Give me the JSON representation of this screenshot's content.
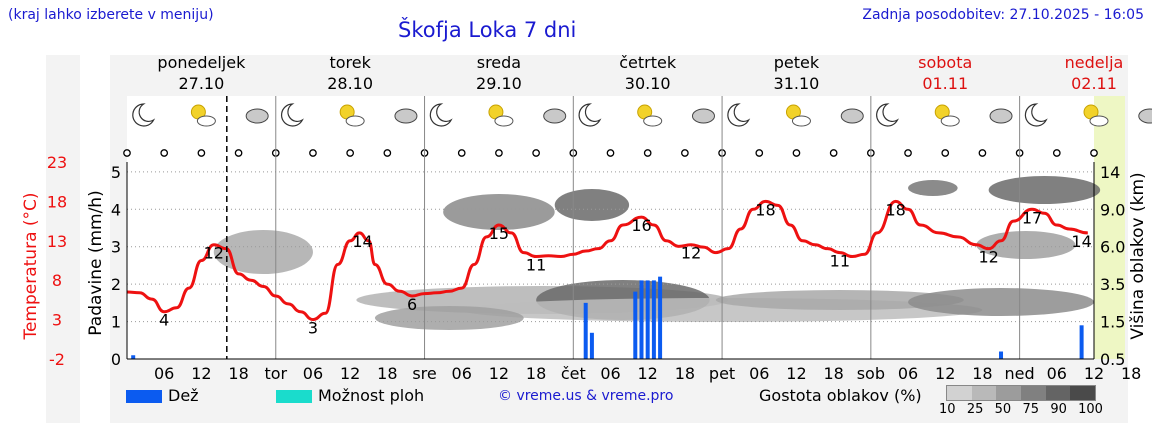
{
  "header": {
    "hint": "(kraj lahko izberete v meniju)",
    "title": "Škofja Loka 7 dni",
    "updated": "Zadnja posodobitev: 27.10.2025 - 16:05"
  },
  "days": [
    {
      "name": "ponedeljek",
      "date": "27.10",
      "weekend": false
    },
    {
      "name": "torek",
      "date": "28.10",
      "weekend": false
    },
    {
      "name": "sreda",
      "date": "29.10",
      "weekend": false
    },
    {
      "name": "četrtek",
      "date": "30.10",
      "weekend": false
    },
    {
      "name": "petek",
      "date": "31.10",
      "weekend": false
    },
    {
      "name": "sobota",
      "date": "01.11",
      "weekend": true
    },
    {
      "name": "nedelja",
      "date": "02.11",
      "weekend": true
    }
  ],
  "axes": {
    "temp_title": "Temperatura (°C)",
    "rain_title": "Padavine (mm/h)",
    "cloud_title": "Višina oblakov (km)",
    "temp_ticks": [
      "23",
      "18",
      "13",
      "8",
      "3",
      "-2"
    ],
    "rain_ticks": [
      "5",
      "4",
      "3",
      "2",
      "1",
      "0"
    ],
    "cloud_ticks": [
      "14",
      "9.0",
      "6.0",
      "3.5",
      "1.5",
      "0.5"
    ],
    "time_ticks": [
      "06",
      "12",
      "18",
      "tor",
      "06",
      "12",
      "18",
      "sre",
      "06",
      "12",
      "18",
      "čet",
      "06",
      "12",
      "18",
      "pet",
      "06",
      "12",
      "18",
      "sob",
      "06",
      "12",
      "18",
      "ned",
      "06",
      "12",
      "18"
    ]
  },
  "chart_data": {
    "type": "line",
    "title": "Škofja Loka 7 dni",
    "xlabel": "",
    "ylabel": "Temperatura (°C)",
    "ylim": [
      -2,
      23
    ],
    "rain_ylim": [
      0,
      5
    ],
    "x_units": "hours from Monday 27.10 00:00",
    "series": [
      {
        "name": "Temperatura",
        "color": "#ee1111",
        "points": [
          [
            0,
            6.5
          ],
          [
            2,
            6.4
          ],
          [
            4,
            5.6
          ],
          [
            6,
            4
          ],
          [
            8,
            4.5
          ],
          [
            10,
            7
          ],
          [
            12,
            10.5
          ],
          [
            14,
            12.5
          ],
          [
            16,
            12
          ],
          [
            18,
            8.8
          ],
          [
            20,
            8
          ],
          [
            22,
            7.2
          ],
          [
            24,
            6
          ],
          [
            26,
            5
          ],
          [
            28,
            4
          ],
          [
            30,
            3
          ],
          [
            32,
            3.8
          ],
          [
            34,
            10
          ],
          [
            36,
            13
          ],
          [
            37.5,
            14
          ],
          [
            39,
            13
          ],
          [
            40,
            10
          ],
          [
            42,
            7.5
          ],
          [
            44,
            6.6
          ],
          [
            46,
            6
          ],
          [
            48,
            6.3
          ],
          [
            50,
            6.4
          ],
          [
            52,
            6.6
          ],
          [
            54,
            7
          ],
          [
            56,
            10
          ],
          [
            58,
            13.5
          ],
          [
            60,
            15
          ],
          [
            62,
            14
          ],
          [
            64,
            11.5
          ],
          [
            66,
            11
          ],
          [
            68,
            11.1
          ],
          [
            70,
            11
          ],
          [
            72,
            11.3
          ],
          [
            74,
            11.7
          ],
          [
            76,
            12
          ],
          [
            78,
            13
          ],
          [
            80,
            15
          ],
          [
            83,
            16
          ],
          [
            85,
            15
          ],
          [
            87,
            13
          ],
          [
            89,
            12.3
          ],
          [
            91,
            12.5
          ],
          [
            93,
            12.2
          ],
          [
            95,
            11.5
          ],
          [
            97,
            12
          ],
          [
            99,
            14.5
          ],
          [
            101,
            17
          ],
          [
            103,
            18
          ],
          [
            105,
            17.5
          ],
          [
            107,
            15
          ],
          [
            109,
            13
          ],
          [
            111,
            12.5
          ],
          [
            113,
            12
          ],
          [
            115,
            11.5
          ],
          [
            117,
            11
          ],
          [
            119,
            11.3
          ],
          [
            121,
            14
          ],
          [
            124,
            18
          ],
          [
            126,
            17
          ],
          [
            128,
            15
          ],
          [
            131,
            14
          ],
          [
            134,
            13.5
          ],
          [
            137,
            12.5
          ],
          [
            139,
            12
          ],
          [
            141,
            13
          ],
          [
            143,
            15.5
          ],
          [
            146,
            17
          ],
          [
            148,
            16.5
          ],
          [
            150,
            15
          ],
          [
            152,
            14.5
          ],
          [
            155,
            14
          ]
        ]
      },
      {
        "name": "Dež (mm/h)",
        "color": "#0b5bf0",
        "points": [
          [
            1,
            0.1
          ],
          [
            74,
            1.5
          ],
          [
            75,
            0.7
          ],
          [
            82,
            1.8
          ],
          [
            83,
            2.1
          ],
          [
            84,
            2.1
          ],
          [
            85,
            2.1
          ],
          [
            86,
            2.2
          ],
          [
            141,
            0.2
          ],
          [
            154,
            0.9
          ]
        ]
      }
    ],
    "labels": [
      {
        "x": 6,
        "value": "4"
      },
      {
        "x": 14,
        "value": "12"
      },
      {
        "x": 30,
        "value": "3"
      },
      {
        "x": 38,
        "value": "14"
      },
      {
        "x": 46,
        "value": "6"
      },
      {
        "x": 60,
        "value": "15"
      },
      {
        "x": 66,
        "value": "11"
      },
      {
        "x": 83,
        "value": "16"
      },
      {
        "x": 91,
        "value": "12"
      },
      {
        "x": 103,
        "value": "18"
      },
      {
        "x": 115,
        "value": "11"
      },
      {
        "x": 124,
        "value": "18"
      },
      {
        "x": 139,
        "value": "12"
      },
      {
        "x": 146,
        "value": "17"
      },
      {
        "x": 154,
        "value": "14"
      }
    ],
    "now_hour": 16.1
  },
  "legend": {
    "rain": "Dež",
    "rain_color": "#0b5bf0",
    "shower": "Možnost ploh",
    "shower_color": "#1adccc",
    "density_title": "Gostota oblakov (%)",
    "density_levels": [
      "10",
      "25",
      "50",
      "75",
      "90",
      "100"
    ],
    "density_colors": [
      "#d2d2d2",
      "#b9b9b9",
      "#9c9c9c",
      "#808080",
      "#646464",
      "#4a4a4a"
    ]
  },
  "credit": "© vreme.us & vreme.pro"
}
